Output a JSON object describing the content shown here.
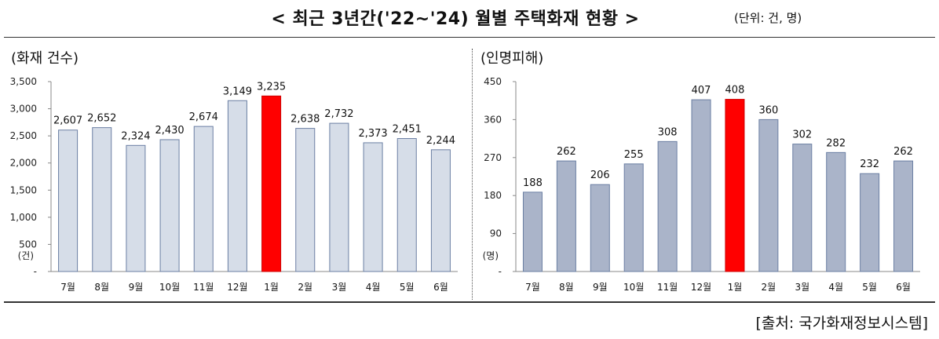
{
  "title": "< 최근 3년간('22~'24) 월별 주택화재 현황 >",
  "unit_note": "(단위: 건, 명)",
  "source": "[출처:  국가화재정보시스템]",
  "colors": {
    "left_bar": "#d6dde8",
    "right_bar": "#aab4c9",
    "highlight": "#ff0000",
    "bar_stroke": "#6b7fa3"
  },
  "chart_data": [
    {
      "type": "bar",
      "title": "(화재 건수)",
      "categories": [
        "7월",
        "8월",
        "9월",
        "10월",
        "11월",
        "12월",
        "1월",
        "2월",
        "3월",
        "4월",
        "5월",
        "6월"
      ],
      "values": [
        2607,
        2652,
        2324,
        2430,
        2674,
        3149,
        3235,
        2638,
        2732,
        2373,
        2451,
        2244
      ],
      "value_labels": [
        "2,607",
        "2,652",
        "2,324",
        "2,430",
        "2,674",
        "3,149",
        "3,235",
        "2,638",
        "2,732",
        "2,373",
        "2,451",
        "2,244"
      ],
      "highlight_index": 6,
      "ylim": [
        0,
        3500
      ],
      "yticks": [
        0,
        500,
        1000,
        1500,
        2000,
        2500,
        3000,
        3500
      ],
      "ytick_labels": [
        "-",
        "500",
        "1,000",
        "1,500",
        "2,000",
        "2,500",
        "3,000",
        "3,500"
      ],
      "unit_label": "(건)",
      "grid": false
    },
    {
      "type": "bar",
      "title": "(인명피해)",
      "categories": [
        "7월",
        "8월",
        "9월",
        "10월",
        "11월",
        "12월",
        "1월",
        "2월",
        "3월",
        "4월",
        "5월",
        "6월"
      ],
      "values": [
        188,
        262,
        206,
        255,
        308,
        407,
        408,
        360,
        302,
        282,
        232,
        262
      ],
      "value_labels": [
        "188",
        "262",
        "206",
        "255",
        "308",
        "407",
        "408",
        "360",
        "302",
        "282",
        "232",
        "262"
      ],
      "highlight_index": 6,
      "ylim": [
        0,
        450
      ],
      "yticks": [
        0,
        90,
        180,
        270,
        360,
        450
      ],
      "ytick_labels": [
        "-",
        "90",
        "180",
        "270",
        "360",
        "450"
      ],
      "unit_label": "(명)",
      "grid": false
    }
  ]
}
